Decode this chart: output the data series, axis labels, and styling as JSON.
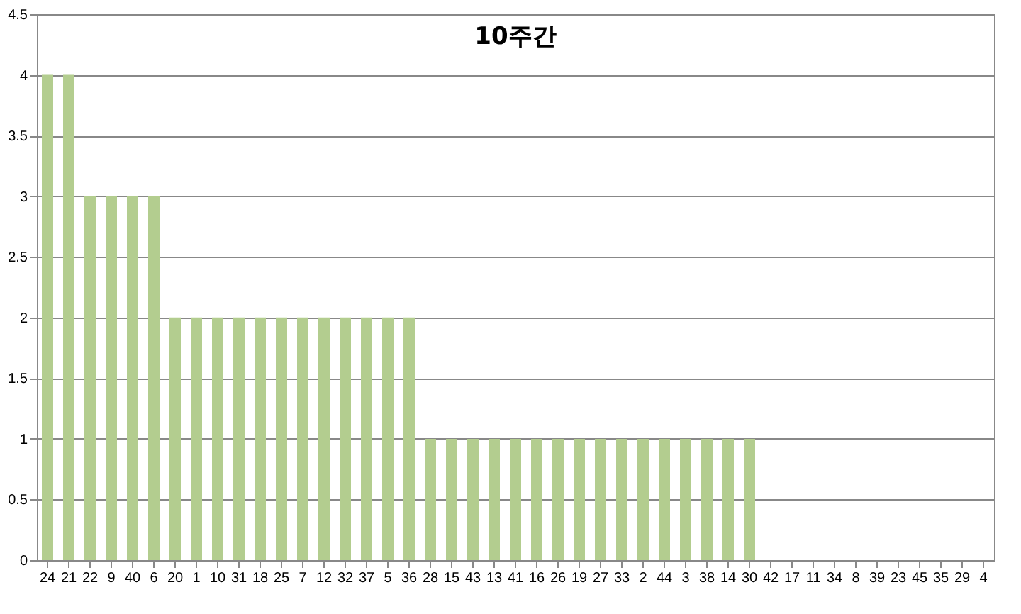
{
  "chart_data": {
    "type": "bar",
    "title": "10주간",
    "categories": [
      "24",
      "21",
      "22",
      "9",
      "40",
      "6",
      "20",
      "1",
      "10",
      "31",
      "18",
      "25",
      "7",
      "12",
      "32",
      "37",
      "5",
      "36",
      "28",
      "15",
      "43",
      "13",
      "41",
      "16",
      "26",
      "19",
      "27",
      "33",
      "2",
      "44",
      "3",
      "38",
      "14",
      "30",
      "42",
      "17",
      "11",
      "34",
      "8",
      "39",
      "23",
      "45",
      "35",
      "29",
      "4"
    ],
    "values": [
      4,
      4,
      3,
      3,
      3,
      3,
      2,
      2,
      2,
      2,
      2,
      2,
      2,
      2,
      2,
      2,
      2,
      2,
      1,
      1,
      1,
      1,
      1,
      1,
      1,
      1,
      1,
      1,
      1,
      1,
      1,
      1,
      1,
      1,
      0,
      0,
      0,
      0,
      0,
      0,
      0,
      0,
      0,
      0,
      0
    ],
    "color": "#b3cd8f",
    "ylim": [
      0,
      4.5
    ],
    "yticks": [
      0,
      0.5,
      1,
      1.5,
      2,
      2.5,
      3,
      3.5,
      4,
      4.5
    ],
    "grid": "y"
  }
}
